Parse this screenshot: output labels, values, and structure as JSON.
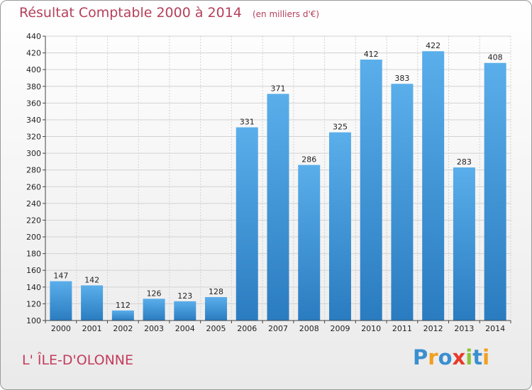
{
  "chart_data": {
    "type": "bar",
    "title": "Résultat Comptable 2000 à 2014",
    "subtitle": "(en milliers d'€)",
    "categories": [
      "2000",
      "2001",
      "2002",
      "2003",
      "2004",
      "2005",
      "2006",
      "2007",
      "2008",
      "2009",
      "2010",
      "2011",
      "2012",
      "2013",
      "2014"
    ],
    "values": [
      147,
      142,
      112,
      126,
      123,
      128,
      331,
      371,
      286,
      325,
      412,
      383,
      422,
      283,
      408
    ],
    "ylim": [
      100,
      440
    ],
    "yticks": [
      100,
      120,
      140,
      160,
      180,
      200,
      220,
      240,
      260,
      280,
      300,
      320,
      340,
      360,
      380,
      400,
      420,
      440
    ],
    "xlabel": "",
    "ylabel": "",
    "grid": true
  },
  "commune": "L' ÎLE-D'OLONNE",
  "logo": {
    "letters": [
      "P",
      "r",
      "o",
      "x",
      "i",
      "t",
      "i"
    ],
    "colors": [
      "#3a8fd0",
      "#f2a020",
      "#3a8fd0",
      "#e83a2a",
      "#8cc43a",
      "#3a8fd0",
      "#f2a020"
    ]
  },
  "colors": {
    "bar_light": "#5aaeea",
    "bar_dark": "#2a7cc0",
    "title": "#b4405a"
  }
}
